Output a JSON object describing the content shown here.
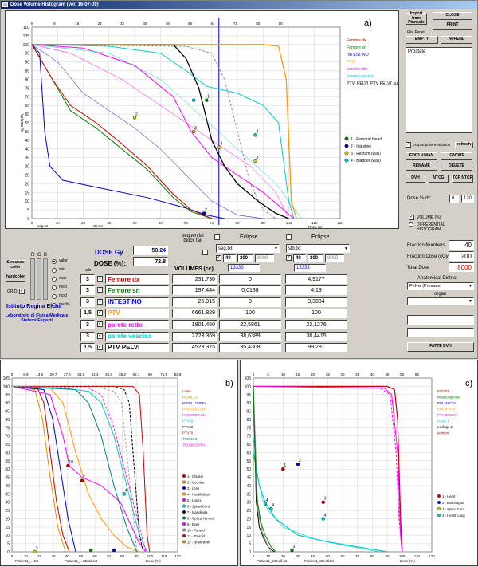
{
  "window": {
    "title": "Dose Volume Histogram (ver. 16-07-09)"
  },
  "top_chart": {
    "panel_label": "a)",
    "x_top_ticks": [
      "0",
      "8",
      "16",
      "24",
      "32",
      "40",
      "48",
      "56",
      "64",
      "72",
      "80",
      "88"
    ],
    "x_bottom_ticks": [
      "0",
      "10",
      "20",
      "30",
      "40",
      "50",
      "60",
      "70",
      "80",
      "90",
      "100",
      "110",
      "120"
    ],
    "y_ticks": [
      "0",
      "5",
      "10",
      "15",
      "20",
      "25",
      "30",
      "35",
      "40",
      "45",
      "50",
      "55",
      "60",
      "65",
      "70",
      "75",
      "80",
      "85",
      "90",
      "95",
      "100",
      "105",
      "110"
    ],
    "y_axis_label": "Volume %",
    "x_axis_label": "Dose (%)",
    "file_labels": [
      "seg.txt",
      "slb.txt"
    ],
    "legend": [
      {
        "name": "Femore dx",
        "color": "#cc0000"
      },
      {
        "name": "Femore sn",
        "color": "#008000"
      },
      {
        "name": "INTESTINO",
        "color": "#0000cc"
      },
      {
        "name": "PTV",
        "color": "#ff9900"
      },
      {
        "name": "parete retto",
        "color": "#ff00ff"
      },
      {
        "name": "parete vescica",
        "color": "#00cccc"
      },
      {
        "name": "PTV_PELVI [PTV PELVI' sub P",
        "color": "#000000"
      }
    ],
    "points_legend": [
      {
        "name": "1 - Femoral Head",
        "color": "#008000"
      },
      {
        "name": "2 - Intestine",
        "color": "#0000cc"
      },
      {
        "name": "3 - Rectum (wall)",
        "color": "#cccc00"
      },
      {
        "name": "4 - Bladder (wall)",
        "color": "#00cccc"
      }
    ]
  },
  "right_panel": {
    "import_label": "Import from Pinnacle",
    "close_label": "CLOSE",
    "print_label": "PRINT",
    "file_excel_label": "File Excel",
    "empty_label": "EMPTY",
    "append_label": "APPEND",
    "structure_list": [
      "Prostate"
    ],
    "eclipse_cb_label": "Eclipse point evaluation",
    "refresh_label": "refresh",
    "buttons": [
      "EDITLV/MAN",
      "IGNORE",
      "RENAME",
      "DELETE",
      "DVH",
      "NTCG",
      "TCP NTCP"
    ],
    "dose_dx_label": "Dose % dx:",
    "dose_dx_value": "0",
    "dose_dx_max": "120",
    "volume_label": "VOLUME (%)",
    "differential_label": "DIFFERENTIAL HISTOGRAM"
  },
  "controls": {
    "structure_btn": "Structure color",
    "hardcolor_btn": "hardcolor",
    "grid_label": "GRID:",
    "rgb_labels": [
      "R",
      "G",
      "B"
    ],
    "radio_labels": [
      "valor",
      "min",
      "max",
      "med",
      "mod",
      "media"
    ],
    "institute": "Istituto Regina Elena",
    "lab": "Laboratorio di Fisica Medica e Sistemi Esperti",
    "dose_gy_label": "DOSE Gy",
    "dose_gy_value": "58.24",
    "dose_pct_label": "DOSE (%):",
    "dose_pct_value": "72.8",
    "sequential_label": "sequential block tail",
    "eclipse_label": "Eclipse",
    "file1": "seg.txt",
    "file2": "slb.txt",
    "spin1": [
      "40",
      "200",
      "8000"
    ],
    "spin2": [
      "40",
      "200",
      "8000"
    ],
    "cc_value1": "13333",
    "cc_value2": "13333",
    "volumes_header": "VOLUMES (cc)",
    "ab_label": "a/b",
    "rows": [
      {
        "ab": "3",
        "name": "Femore dx",
        "color": "#cc0000",
        "vol": "231.730",
        "v1": "0",
        "v2": "4,9177"
      },
      {
        "ab": "3",
        "name": "Femore sn",
        "color": "#008000",
        "vol": "197.444",
        "v1": "0,0138",
        "v2": "4,19"
      },
      {
        "ab": "3",
        "name": "INTESTINO",
        "color": "#0000cc",
        "vol": "25.915",
        "v1": "0",
        "v2": "3,3834"
      },
      {
        "ab": "1,5",
        "name": "PTV",
        "color": "#ff9900",
        "vol": "6661.829",
        "v1": "100",
        "v2": "100"
      },
      {
        "ab": "3",
        "name": "parete retto",
        "color": "#ff00ff",
        "vol": "1801.460",
        "v1": "22,5861",
        "v2": "23,1276"
      },
      {
        "ab": "3",
        "name": "parete vescica",
        "color": "#00cccc",
        "vol": "2723.369",
        "v1": "38,6389",
        "v2": "38,4415"
      },
      {
        "ab": "1,5",
        "name": "PTV PELVI",
        "color": "#000000",
        "vol": "4523.375",
        "v1": "35,4308",
        "v2": "99,281"
      }
    ]
  },
  "fraction_panel": {
    "fraction_numbers_label": "Fraction Numbers",
    "fraction_numbers": "40",
    "fraction_dose_label": "Fraction Dose (cGy)",
    "fraction_dose": "200",
    "total_dose_label": "Total Dose",
    "total_dose": "8000",
    "anatomical_label": "Anatomical District",
    "anatomical_value": "Pelvis (Prostate)",
    "organ_label": "organ",
    "organ_value": "",
    "fatte_label": "FATTE DVH"
  },
  "bottom_left": {
    "panel_label": "b)",
    "x_top_ticks": [
      "0",
      "6.9",
      "13.8",
      "20.7",
      "27.6",
      "34.5",
      "41.4",
      "48.3",
      "55.2",
      "62.1",
      "69",
      "75.9",
      "82.8"
    ],
    "x_bottom_ticks": [
      "0",
      "10",
      "20",
      "30",
      "40",
      "50",
      "60",
      "70",
      "80",
      "90",
      "100",
      "110",
      "120"
    ],
    "x_axis_label": "Dose (%)",
    "file_labels": [
      "Patient1_....txt",
      "Patient1_...SB.ab.txt"
    ],
    "legend": [
      {
        "name": "Lente",
        "color": "#cc0000"
      },
      {
        "name": "MIDOLLO",
        "color": "#cc9900"
      },
      {
        "name": "MIDOLLO PRV",
        "color": "#0000cc"
      },
      {
        "name": "PAROTIDE DX",
        "color": "#ff9900"
      },
      {
        "name": "PAROTIDE SN",
        "color": "#ff00ff"
      },
      {
        "name": "PTV50",
        "color": "#00cccc"
      },
      {
        "name": "PTV60",
        "color": "#000000"
      },
      {
        "name": "PTV70",
        "color": "#cc0000"
      },
      {
        "name": "TRONCO",
        "color": "#008080"
      },
      {
        "name": "TRONCO PRV",
        "color": "#ff00ff"
      }
    ],
    "points_legend": [
      "1 - Chiasm",
      "2 - Cochlea",
      "3 - Lens",
      "4 - Health Brain",
      "5 - Larinx",
      "6 - Spinal Cord",
      "7 - Mandibula",
      "8 - Optical Nerves",
      "9 - Eyes",
      "10 - Parotid",
      "11 - Thyroid",
      "12 - Brain stem"
    ]
  },
  "bottom_right": {
    "panel_label": "c)",
    "x_top_ticks": [
      "0",
      "5",
      "10",
      "15",
      "20",
      "25",
      "30",
      "35",
      "40",
      "45",
      "50",
      "55"
    ],
    "x_bottom_ticks": [
      "0",
      "10",
      "20",
      "30",
      "40",
      "50",
      "60",
      "70",
      "80",
      "90",
      "100",
      "110",
      "120"
    ],
    "x_axis_label": "Dose (%)",
    "file_labels": [
      "Patient1_103.all.txt",
      "Patient1_SB.all.txt"
    ],
    "legend": [
      {
        "name": "BOOST",
        "color": "#cc0000"
      },
      {
        "name": "Midollo spinale",
        "color": "#008000"
      },
      {
        "name": "POLM+CTV",
        "color": "#0000cc"
      },
      {
        "name": "POLM-PTV",
        "color": "#ff9900"
      },
      {
        "name": "PTV-BOOST",
        "color": "#ff00ff"
      },
      {
        "name": "cuore 1",
        "color": "#00cccc"
      },
      {
        "name": "esofago 2",
        "color": "#000000"
      },
      {
        "name": "polmoni",
        "color": "#cc0000"
      }
    ],
    "points_legend": [
      "1 - Heart",
      "2 - Esophagus",
      "3 - Spinal Cord",
      "4 - Health Lung"
    ]
  }
}
